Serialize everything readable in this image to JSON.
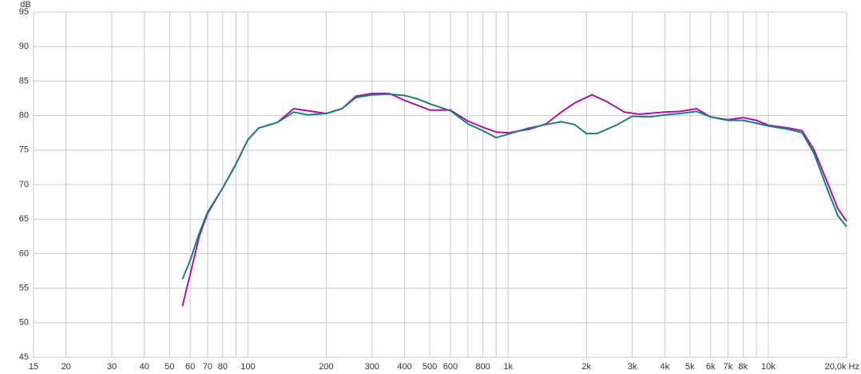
{
  "chart_data": {
    "type": "line",
    "y_label": "dB",
    "xscale": "log",
    "grid": true,
    "xlim": [
      15,
      20000
    ],
    "ylim": [
      45,
      95
    ],
    "yticks": [
      45,
      50,
      55,
      60,
      65,
      70,
      75,
      80,
      85,
      90,
      95
    ],
    "xticks": [
      15,
      20,
      30,
      40,
      50,
      60,
      70,
      80,
      100,
      200,
      300,
      400,
      500,
      600,
      800,
      {
        "value": 1000,
        "label": "1k"
      },
      {
        "value": 2000,
        "label": "2k"
      },
      {
        "value": 3000,
        "label": "3k"
      },
      {
        "value": 4000,
        "label": "4k"
      },
      {
        "value": 5000,
        "label": "5k"
      },
      {
        "value": 6000,
        "label": "6k"
      },
      {
        "value": 7000,
        "label": "7k"
      },
      {
        "value": 8000,
        "label": "8k"
      },
      {
        "value": 10000,
        "label": "10k"
      },
      {
        "value": 20000,
        "label": "20,0k Hz"
      }
    ],
    "xminor": [
      90,
      700,
      900,
      9000
    ],
    "series": [
      {
        "color": "#b010b0",
        "x": [
          56,
          60,
          65,
          70,
          80,
          90,
          100,
          110,
          130,
          150,
          170,
          200,
          230,
          260,
          300,
          350,
          400,
          500,
          600,
          700,
          800,
          900,
          1000,
          1200,
          1400,
          1600,
          1800,
          2100,
          2400,
          2800,
          3200,
          4000,
          4600,
          5300,
          6000,
          7000,
          8000,
          9000,
          10000,
          12000,
          13500,
          15000,
          17000,
          18500,
          20000
        ],
        "values": [
          52.4,
          57,
          62.5,
          65.8,
          69.5,
          73,
          76.5,
          78.2,
          79,
          81,
          80.7,
          80.3,
          81,
          82.8,
          83.2,
          83.2,
          82.2,
          80.8,
          80.8,
          79.2,
          78.3,
          77.6,
          77.5,
          78,
          78.8,
          80.5,
          81.8,
          83,
          82,
          80.5,
          80.2,
          80.5,
          80.6,
          81,
          79.8,
          79.4,
          79.7,
          79.3,
          78.6,
          78.2,
          77.8,
          75,
          70,
          66.5,
          64.7
        ]
      },
      {
        "color": "#1a8080",
        "x": [
          56,
          60,
          65,
          70,
          80,
          90,
          100,
          110,
          130,
          150,
          170,
          200,
          230,
          260,
          300,
          350,
          400,
          450,
          500,
          600,
          700,
          800,
          900,
          1000,
          1200,
          1400,
          1600,
          1800,
          2000,
          2200,
          2600,
          3000,
          3500,
          4000,
          4600,
          5300,
          6000,
          7000,
          8000,
          9000,
          10000,
          12000,
          13500,
          15000,
          17000,
          18500,
          20000
        ],
        "values": [
          56.3,
          59,
          63,
          66,
          69.5,
          73,
          76.5,
          78.2,
          79,
          80.5,
          80.1,
          80.3,
          81,
          82.6,
          83,
          83.1,
          82.9,
          82.4,
          81.7,
          80.7,
          78.8,
          77.8,
          76.8,
          77.3,
          78.2,
          78.7,
          79.1,
          78.7,
          77.4,
          77.4,
          78.6,
          79.9,
          79.8,
          80.1,
          80.3,
          80.6,
          79.8,
          79.3,
          79.3,
          78.9,
          78.5,
          78,
          77.5,
          74.5,
          69,
          65.5,
          63.9
        ]
      }
    ]
  }
}
